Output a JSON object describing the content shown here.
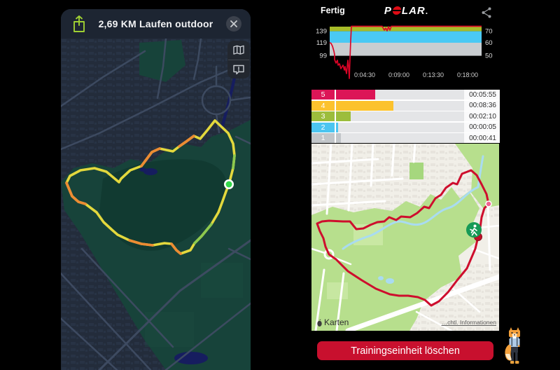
{
  "left_app": {
    "title": "2,69 KM Laufen outdoor",
    "accent_green": "#9fd033",
    "route_marker_color": "#32d74b",
    "route_colors": {
      "base": "#e3d83d",
      "fast": "#ec8b33",
      "slow": "#8cc94e"
    },
    "map_theme": {
      "bg": "#232c3b",
      "park": "#17433a",
      "water": "#161d5f",
      "road": "#3f4c63"
    }
  },
  "right_app": {
    "header": {
      "done_label": "Fertig",
      "brand_p": "P",
      "brand_lar": "LAR",
      "brand_dot": "."
    },
    "hr_chart": {
      "y_left": [
        "139",
        "119",
        "99"
      ],
      "y_right": [
        "70",
        "60",
        "50"
      ],
      "x_ticks": [
        "0:04:30",
        "0:09:00",
        "0:13:30",
        "0:18:00"
      ],
      "band_high": "#a8bc29",
      "band_mid": "#4ac9f4",
      "band_low": "#c9cdd0",
      "line_color": "#dc0427"
    },
    "zones": {
      "rows": [
        {
          "zone": "5",
          "time": "00:05:55",
          "color": "#dc1557",
          "bar_pct": 31
        },
        {
          "zone": "4",
          "time": "00:08:36",
          "color": "#fcc22d",
          "bar_pct": 45
        },
        {
          "zone": "3",
          "time": "00:02:10",
          "color": "#9cbd3c",
          "bar_pct": 11.5
        },
        {
          "zone": "2",
          "time": "00:00:05",
          "color": "#4cc5f0",
          "bar_pct": 1.4
        },
        {
          "zone": "1",
          "time": "00:00:41",
          "color": "#c2c6c9",
          "bar_pct": 3.8
        }
      ]
    },
    "map_attribution": {
      "brand": "Karten",
      "legal": "…chtl. Informationen"
    },
    "map_route_color": "#ce0e2d",
    "delete_button_label": "Trainingseinheit löschen",
    "delete_button_color": "#c8102e"
  },
  "chart_data": [
    {
      "type": "line",
      "title": "Heart rate over time",
      "x_ticks": [
        "0:04:30",
        "0:09:00",
        "0:13:30",
        "0:18:00"
      ],
      "x_range_mmss": [
        "0:00:00",
        "0:19:30"
      ],
      "y_left_ticks_bpm": [
        139,
        119,
        99
      ],
      "y_right_ticks_pct": [
        70,
        60,
        50
      ],
      "bands": [
        {
          "range_bpm": "139+",
          "pct": "70+",
          "color": "#a8bc29"
        },
        {
          "range_bpm": "119-139",
          "pct": "60-70",
          "color": "#4ac9f4"
        },
        {
          "range_bpm": "99-119",
          "pct": "50-60",
          "color": "#c9cdd0"
        }
      ],
      "series": [
        {
          "name": "heart_rate_bpm",
          "points_mmss_bpm": [
            [
              "0:00",
              119
            ],
            [
              "0:30",
              108
            ],
            [
              "1:00",
              97
            ],
            [
              "1:30",
              90
            ],
            [
              "2:00",
              85
            ],
            [
              "2:15",
              95
            ],
            [
              "2:25",
              80
            ],
            [
              "2:30",
              150
            ],
            [
              "7:10",
              150
            ],
            [
              "7:20",
              141
            ],
            [
              "7:30",
              146
            ],
            [
              "7:40",
              139
            ],
            [
              "7:50",
              150
            ],
            [
              "19:30",
              150
            ]
          ]
        }
      ],
      "note": "line clipped at top of plot (~147 bpm) for most of the session",
      "grid": false,
      "legend": false
    },
    {
      "type": "bar",
      "orientation": "horizontal",
      "title": "Time in heart rate zones",
      "categories": [
        "5",
        "4",
        "3",
        "2",
        "1"
      ],
      "values_time": [
        "00:05:55",
        "00:08:36",
        "00:02:10",
        "00:00:05",
        "00:00:41"
      ],
      "values_seconds": [
        355,
        516,
        130,
        5,
        41
      ],
      "colors": [
        "#dc1557",
        "#fcc22d",
        "#9cbd3c",
        "#4cc5f0",
        "#c2c6c9"
      ]
    }
  ]
}
